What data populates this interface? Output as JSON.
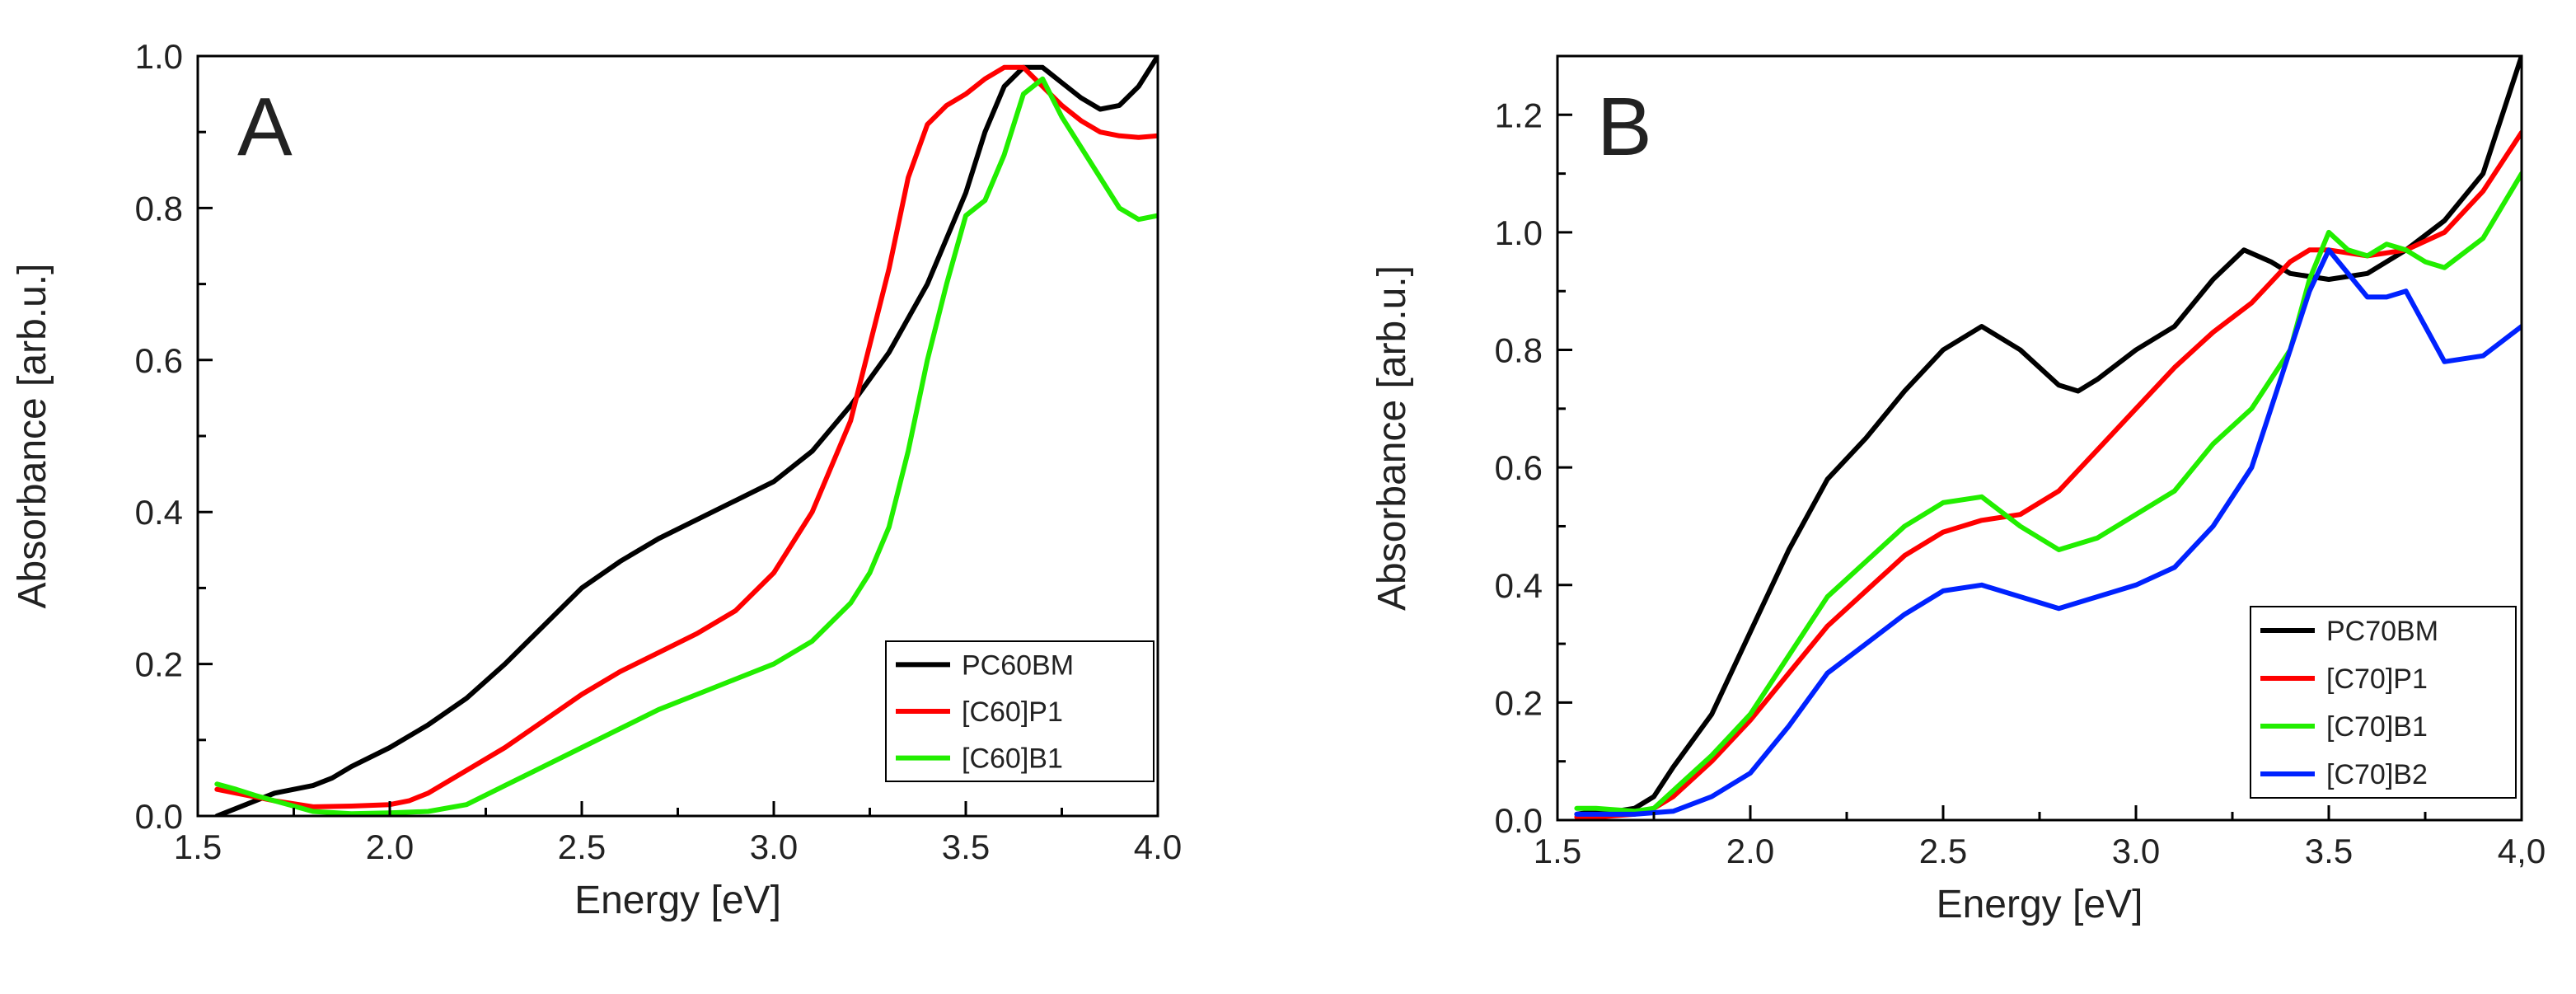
{
  "chart_data": [
    {
      "type": "line",
      "panel_label": "A",
      "xlabel": "Energy [eV]",
      "ylabel": "Absorbance [arb.u.]",
      "xlim": [
        1.5,
        4.0
      ],
      "ylim": [
        0.0,
        1.0
      ],
      "xticks": [
        1.5,
        2.0,
        2.5,
        3.0,
        3.5,
        4.0
      ],
      "xtick_labels": [
        "1.5",
        "2.0",
        "2.5",
        "3.0",
        "3.5",
        "4.0"
      ],
      "yticks": [
        0.0,
        0.2,
        0.4,
        0.6,
        0.8,
        1.0
      ],
      "ytick_labels": [
        "0.0",
        "0.2",
        "0.4",
        "0.6",
        "0.8",
        "1.0"
      ],
      "legend_position": "bottom-right",
      "grid": false,
      "series": [
        {
          "name": "PC60BM",
          "color": "#000000",
          "x": [
            1.55,
            1.6,
            1.65,
            1.7,
            1.75,
            1.8,
            1.85,
            1.9,
            2.0,
            2.1,
            2.2,
            2.3,
            2.4,
            2.5,
            2.6,
            2.7,
            2.8,
            2.9,
            3.0,
            3.1,
            3.2,
            3.3,
            3.4,
            3.5,
            3.55,
            3.6,
            3.65,
            3.7,
            3.75,
            3.8,
            3.85,
            3.9,
            3.95,
            4.0
          ],
          "y": [
            0.0,
            0.01,
            0.02,
            0.03,
            0.035,
            0.04,
            0.05,
            0.065,
            0.09,
            0.12,
            0.155,
            0.2,
            0.25,
            0.3,
            0.335,
            0.365,
            0.39,
            0.415,
            0.44,
            0.48,
            0.54,
            0.61,
            0.7,
            0.82,
            0.9,
            0.96,
            0.985,
            0.985,
            0.965,
            0.945,
            0.93,
            0.935,
            0.96,
            1.0
          ]
        },
        {
          "name": "[C60]P1",
          "color": "#ff0000",
          "x": [
            1.55,
            1.6,
            1.7,
            1.8,
            1.9,
            2.0,
            2.05,
            2.1,
            2.2,
            2.3,
            2.4,
            2.5,
            2.6,
            2.7,
            2.8,
            2.9,
            3.0,
            3.1,
            3.2,
            3.3,
            3.35,
            3.4,
            3.45,
            3.5,
            3.55,
            3.6,
            3.65,
            3.7,
            3.75,
            3.8,
            3.85,
            3.9,
            3.95,
            4.0
          ],
          "y": [
            0.035,
            0.03,
            0.02,
            0.012,
            0.013,
            0.015,
            0.02,
            0.03,
            0.06,
            0.09,
            0.125,
            0.16,
            0.19,
            0.215,
            0.24,
            0.27,
            0.32,
            0.4,
            0.52,
            0.72,
            0.84,
            0.91,
            0.935,
            0.95,
            0.97,
            0.985,
            0.985,
            0.96,
            0.935,
            0.915,
            0.9,
            0.895,
            0.893,
            0.895
          ]
        },
        {
          "name": "[C60]B1",
          "color": "#22ee00",
          "x": [
            1.55,
            1.6,
            1.65,
            1.7,
            1.75,
            1.8,
            1.9,
            2.0,
            2.1,
            2.2,
            2.3,
            2.4,
            2.5,
            2.6,
            2.7,
            2.8,
            2.9,
            3.0,
            3.1,
            3.2,
            3.25,
            3.3,
            3.35,
            3.4,
            3.45,
            3.5,
            3.55,
            3.6,
            3.65,
            3.7,
            3.75,
            3.8,
            3.85,
            3.9,
            3.95,
            4.0
          ],
          "y": [
            0.042,
            0.035,
            0.027,
            0.02,
            0.013,
            0.006,
            0.003,
            0.004,
            0.006,
            0.015,
            0.04,
            0.065,
            0.09,
            0.115,
            0.14,
            0.16,
            0.18,
            0.2,
            0.23,
            0.28,
            0.32,
            0.38,
            0.48,
            0.6,
            0.7,
            0.79,
            0.81,
            0.87,
            0.95,
            0.97,
            0.92,
            0.88,
            0.84,
            0.8,
            0.785,
            0.79
          ]
        }
      ]
    },
    {
      "type": "line",
      "panel_label": "B",
      "xlabel": "Energy [eV]",
      "ylabel": "Absorbance [arb.u.]",
      "xlim": [
        1.5,
        4.0
      ],
      "ylim": [
        0.0,
        1.3
      ],
      "xticks": [
        1.5,
        2.0,
        2.5,
        3.0,
        3.5,
        4.0
      ],
      "xtick_labels": [
        "1.5",
        "2.0",
        "2.5",
        "3.0",
        "3.5",
        "4,0"
      ],
      "yticks": [
        0.0,
        0.2,
        0.4,
        0.6,
        0.8,
        1.0,
        1.2
      ],
      "ytick_labels": [
        "0.0",
        "0.2",
        "0.4",
        "0.6",
        "0.8",
        "1.0",
        "1.2"
      ],
      "legend_position": "bottom-right",
      "grid": false,
      "series": [
        {
          "name": "PC70BM",
          "color": "#000000",
          "x": [
            1.55,
            1.6,
            1.65,
            1.7,
            1.75,
            1.8,
            1.9,
            2.0,
            2.1,
            2.2,
            2.3,
            2.4,
            2.5,
            2.6,
            2.7,
            2.8,
            2.85,
            2.9,
            3.0,
            3.1,
            3.2,
            3.28,
            3.35,
            3.4,
            3.5,
            3.6,
            3.7,
            3.8,
            3.9,
            4.0
          ],
          "y": [
            0.01,
            0.015,
            0.015,
            0.02,
            0.04,
            0.09,
            0.18,
            0.32,
            0.46,
            0.58,
            0.65,
            0.73,
            0.8,
            0.84,
            0.8,
            0.74,
            0.73,
            0.75,
            0.8,
            0.84,
            0.92,
            0.97,
            0.95,
            0.93,
            0.92,
            0.93,
            0.97,
            1.02,
            1.1,
            1.3
          ]
        },
        {
          "name": "[C70]P1",
          "color": "#ff0000",
          "x": [
            1.55,
            1.6,
            1.7,
            1.75,
            1.8,
            1.9,
            2.0,
            2.1,
            2.2,
            2.3,
            2.4,
            2.5,
            2.6,
            2.7,
            2.8,
            2.9,
            3.0,
            3.1,
            3.2,
            3.3,
            3.4,
            3.45,
            3.5,
            3.6,
            3.7,
            3.8,
            3.9,
            4.0
          ],
          "y": [
            0.005,
            0.005,
            0.01,
            0.02,
            0.04,
            0.1,
            0.17,
            0.25,
            0.33,
            0.39,
            0.45,
            0.49,
            0.51,
            0.52,
            0.56,
            0.63,
            0.7,
            0.77,
            0.83,
            0.88,
            0.95,
            0.97,
            0.97,
            0.96,
            0.97,
            1.0,
            1.07,
            1.17
          ]
        },
        {
          "name": "[C70]B1",
          "color": "#22ee00",
          "x": [
            1.55,
            1.6,
            1.7,
            1.75,
            1.8,
            1.9,
            2.0,
            2.1,
            2.2,
            2.3,
            2.4,
            2.5,
            2.6,
            2.7,
            2.8,
            2.9,
            3.0,
            3.1,
            3.2,
            3.3,
            3.4,
            3.45,
            3.5,
            3.55,
            3.6,
            3.65,
            3.7,
            3.75,
            3.8,
            3.9,
            4.0
          ],
          "y": [
            0.02,
            0.02,
            0.015,
            0.02,
            0.05,
            0.11,
            0.18,
            0.28,
            0.38,
            0.44,
            0.5,
            0.54,
            0.55,
            0.5,
            0.46,
            0.48,
            0.52,
            0.56,
            0.64,
            0.7,
            0.8,
            0.92,
            1.0,
            0.97,
            0.96,
            0.98,
            0.97,
            0.95,
            0.94,
            0.99,
            1.1
          ]
        },
        {
          "name": "[C70]B2",
          "color": "#0022ff",
          "x": [
            1.55,
            1.6,
            1.7,
            1.8,
            1.9,
            2.0,
            2.1,
            2.2,
            2.3,
            2.4,
            2.5,
            2.6,
            2.7,
            2.8,
            2.9,
            3.0,
            3.1,
            3.2,
            3.3,
            3.4,
            3.45,
            3.5,
            3.55,
            3.6,
            3.65,
            3.7,
            3.75,
            3.8,
            3.9,
            4.0
          ],
          "y": [
            0.01,
            0.01,
            0.01,
            0.015,
            0.04,
            0.08,
            0.16,
            0.25,
            0.3,
            0.35,
            0.39,
            0.4,
            0.38,
            0.36,
            0.38,
            0.4,
            0.43,
            0.5,
            0.6,
            0.8,
            0.9,
            0.97,
            0.93,
            0.89,
            0.89,
            0.9,
            0.84,
            0.78,
            0.79,
            0.84
          ]
        }
      ]
    }
  ]
}
